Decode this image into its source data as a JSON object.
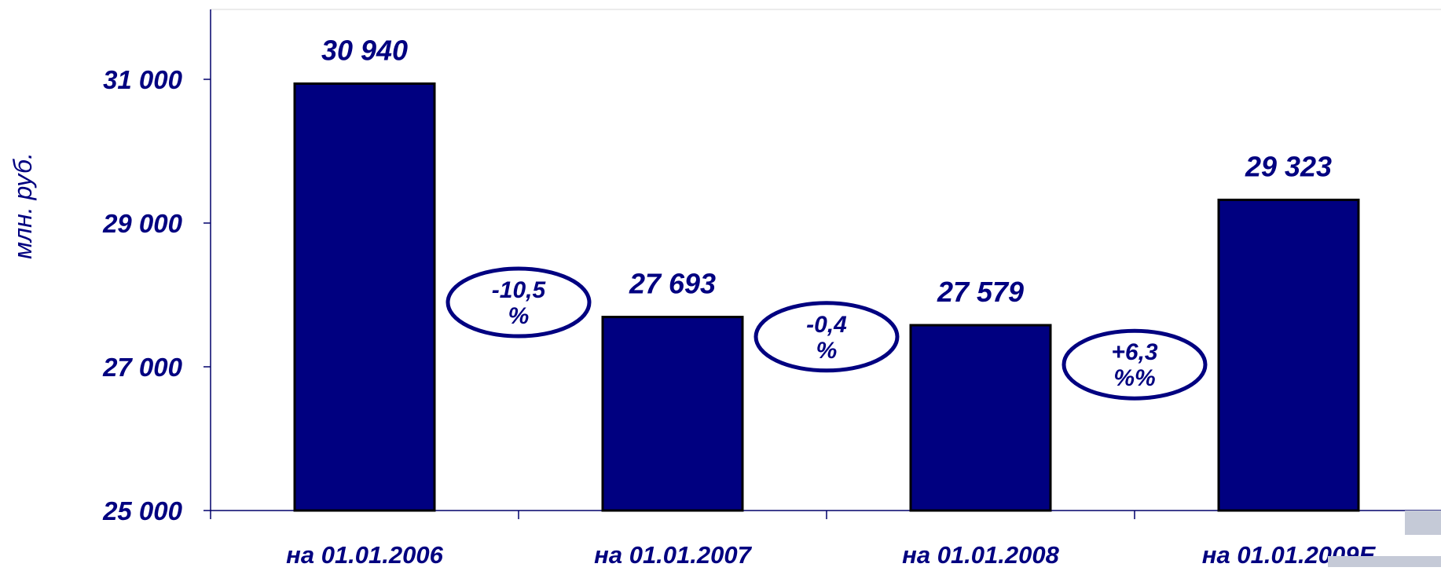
{
  "chart_data": {
    "type": "bar",
    "categories": [
      "на 01.01.2006",
      "на 01.01.2007",
      "на  01.01.2008",
      "на 01.01.2009E"
    ],
    "values": [
      30940,
      27693,
      27579,
      29323
    ],
    "value_labels": [
      "30 940",
      "27 693",
      "27 579",
      "29 323"
    ],
    "ylabel": "млн. руб.",
    "ylim": [
      25000,
      32000
    ],
    "yticks": [
      25000,
      27000,
      29000,
      31000
    ],
    "ytick_labels": [
      "25 000",
      "27 000",
      "29 000",
      "31 000"
    ],
    "grid": false,
    "colors": {
      "bar_fill": "#000080",
      "bar_stroke": "#000000",
      "text": "#000080",
      "axis": "#00006a"
    },
    "annotations": [
      {
        "between": [
          0,
          1
        ],
        "lines": [
          "-10,5",
          "%"
        ]
      },
      {
        "between": [
          1,
          2
        ],
        "lines": [
          "-0,4",
          "%"
        ]
      },
      {
        "between": [
          2,
          3
        ],
        "lines": [
          "+6,3",
          "%%"
        ]
      }
    ]
  }
}
